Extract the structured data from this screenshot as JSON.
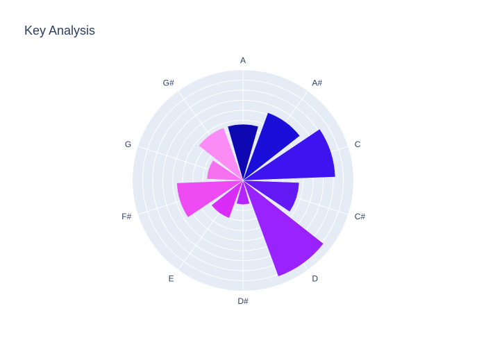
{
  "chart_data": {
    "type": "barpolar",
    "title": "Key Analysis",
    "categories": [
      "A",
      "A#",
      "C",
      "C#",
      "D",
      "D#",
      "E",
      "F#",
      "G",
      "G#"
    ],
    "values": [
      5.6,
      7.2,
      9.2,
      5.6,
      10.2,
      2.4,
      4.0,
      6.6,
      3.6,
      5.6
    ],
    "radial_range": [
      0,
      11
    ],
    "radial_grid_step": 1,
    "angular_direction": "clockwise",
    "angular_start": "top",
    "grid": true,
    "colors": {
      "polar_background": "#e5ecf6",
      "grid": "#ffffff",
      "text": "#2a3f5f",
      "bars": [
        "#0d08b1",
        "#1a0fd8",
        "#3d14f0",
        "#6418f4",
        "#9922ff",
        "#b325fc",
        "#d92cf6",
        "#ed4af1",
        "#f571ef",
        "#fb8cf6"
      ]
    }
  }
}
